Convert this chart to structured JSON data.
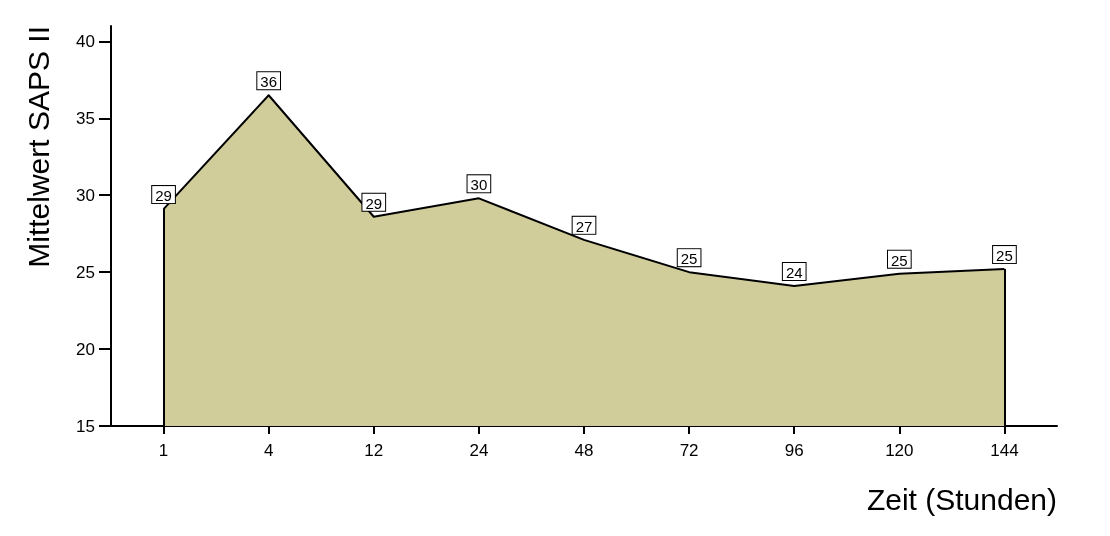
{
  "chart_data": {
    "type": "area",
    "xlabel": "Zeit (Stunden)",
    "ylabel": "Mittelwert SAPS II",
    "categories": [
      "1",
      "4",
      "12",
      "24",
      "48",
      "72",
      "96",
      "120",
      "144"
    ],
    "series": [
      {
        "color": "#d0cd9a",
        "values": [
          29.1,
          36.5,
          28.6,
          29.8,
          27.1,
          25.0,
          24.1,
          24.9,
          25.2
        ],
        "value_labels": [
          "29",
          "36",
          "29",
          "30",
          "27",
          "25",
          "24",
          "25",
          "25"
        ]
      }
    ],
    "ylim": [
      15,
      41
    ],
    "yticks": [
      15,
      20,
      25,
      30,
      35,
      40
    ],
    "grid": false,
    "marker": "none",
    "line_style": "solid"
  }
}
